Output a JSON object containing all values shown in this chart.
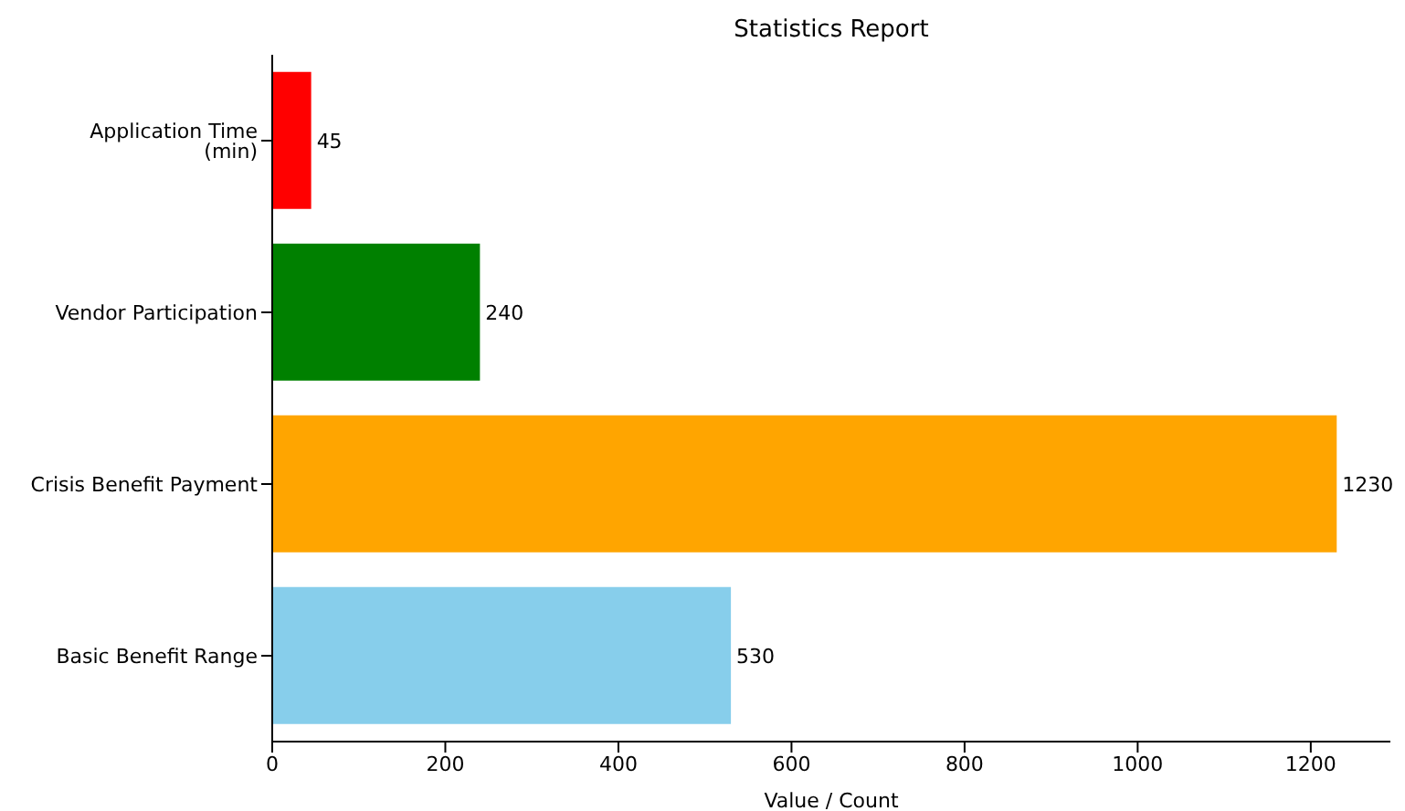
{
  "chart_data": {
    "type": "bar",
    "orientation": "horizontal",
    "title": "Statistics Report",
    "xlabel": "Value / Count",
    "categories": [
      "Application Time (min)",
      "Vendor Participation",
      "Crisis Benefit Payment",
      "Basic Benefit Range"
    ],
    "values": [
      45,
      240,
      1230,
      530
    ],
    "colors": [
      "#ff0000",
      "#008000",
      "#ffa500",
      "#87ceeb"
    ],
    "xlim": [
      0,
      1292
    ],
    "xticks": [
      0,
      200,
      400,
      600,
      800,
      1000,
      1200
    ],
    "data_labels": true,
    "grid": false,
    "legend": false
  }
}
